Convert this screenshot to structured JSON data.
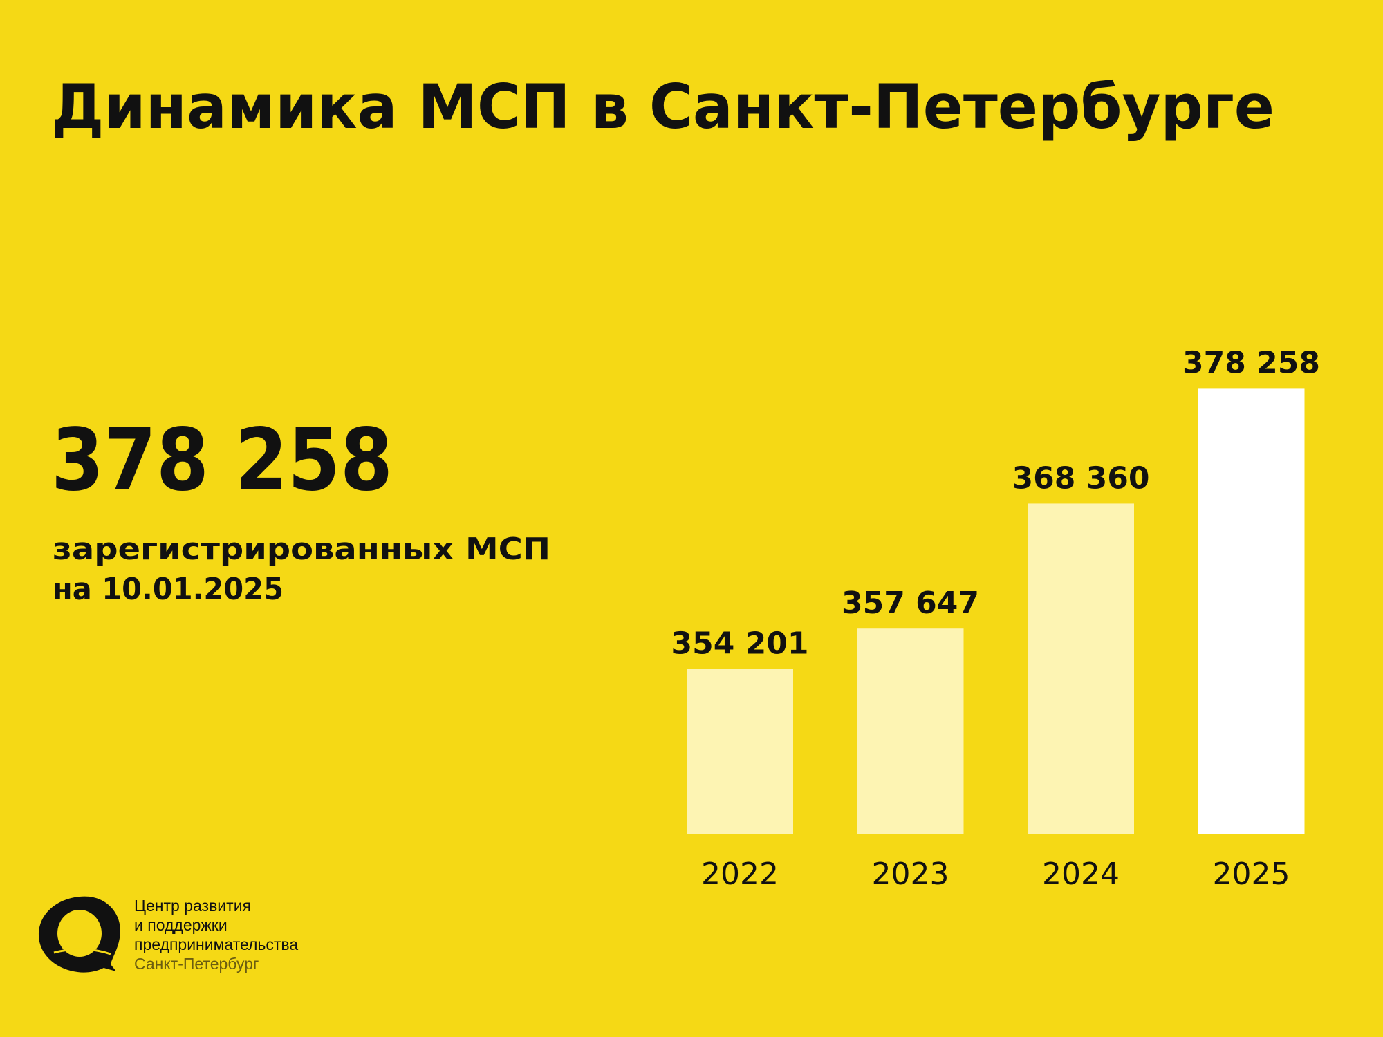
{
  "chart_data": {
    "type": "bar",
    "title": "Динамика МСП в Санкт-Петербурге",
    "headline": "378 258",
    "subtitle": [
      "зарегистрированных МСП",
      "на 10.01.2025"
    ],
    "categories": [
      "2022",
      "2023",
      "2024",
      "2025"
    ],
    "values": [
      354201,
      357647,
      368360,
      378258
    ],
    "value_labels": [
      "354 201",
      "357 647",
      "368 360",
      "378 258"
    ],
    "colors": [
      "#fdf4b3",
      "#fdf4b3",
      "#fdf4b3",
      "#ffffff"
    ],
    "ylim": [
      340000,
      380000
    ],
    "grid": false,
    "logo_text": [
      "Центр развития",
      "и поддержки",
      "предпринимательства",
      "Санкт-Петербург"
    ]
  }
}
